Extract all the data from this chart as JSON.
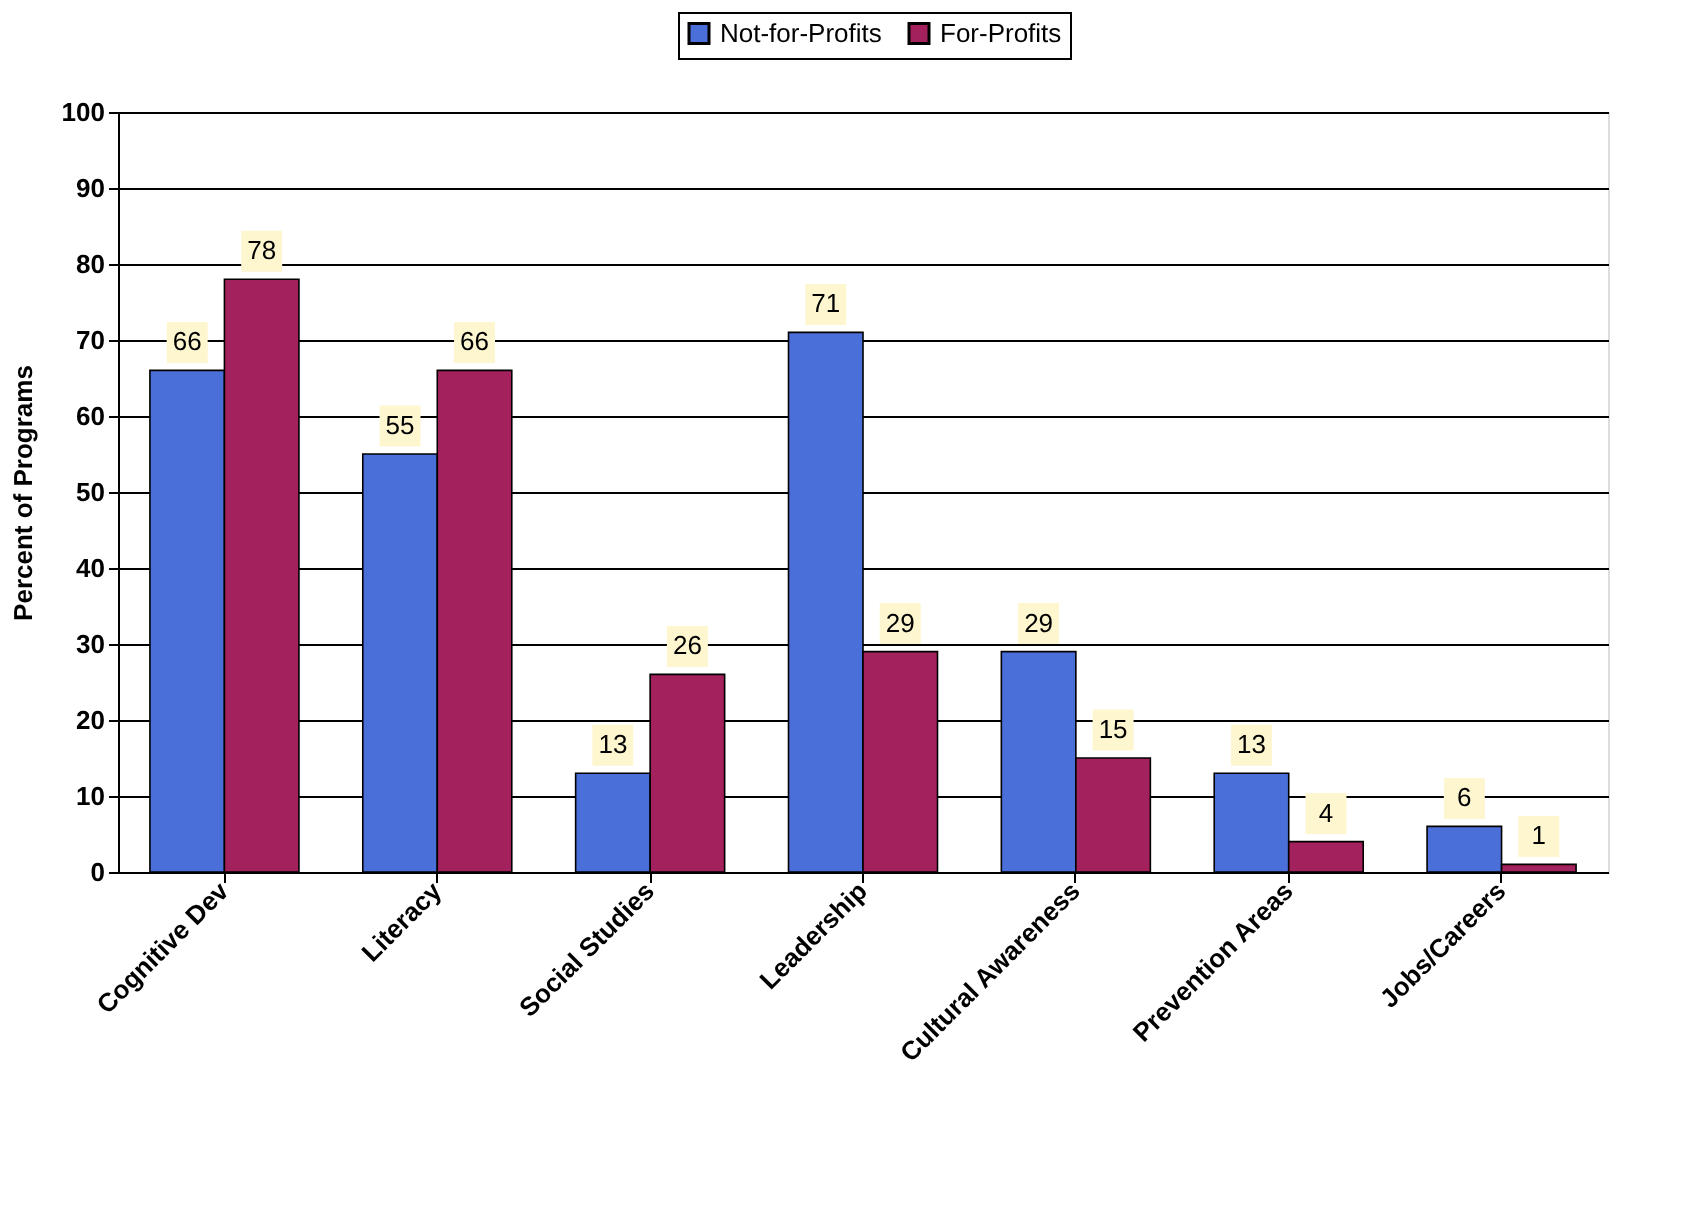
{
  "chart_data": {
    "type": "bar",
    "ylabel": "Percent of Programs",
    "categories": [
      "Cognitive Dev",
      "Literacy",
      "Social Studies",
      "Leadership",
      "Cultural Awareness",
      "Prevention Areas",
      "Jobs/Careers"
    ],
    "series": [
      {
        "name": "Not-for-Profits",
        "color": "#4a6fd8",
        "values": [
          66,
          55,
          13,
          71,
          29,
          13,
          6
        ]
      },
      {
        "name": "For-Profits",
        "color": "#a3215c",
        "values": [
          78,
          66,
          26,
          29,
          15,
          4,
          1
        ]
      }
    ],
    "ylim": [
      0,
      100
    ],
    "yticks": [
      0,
      10,
      20,
      30,
      40,
      50,
      60,
      70,
      80,
      90,
      100
    ],
    "grid": "y",
    "legend": "top",
    "data_labels": true
  }
}
